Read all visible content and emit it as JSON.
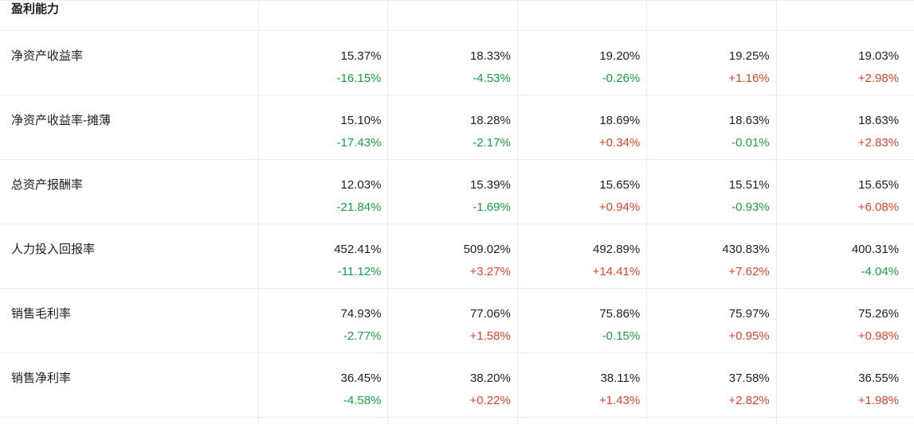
{
  "section": {
    "title": "盈利能力"
  },
  "colors": {
    "positive": "#e0432c",
    "negative": "#18a044",
    "text": "#1f1f1f",
    "border": "#ebebeb"
  },
  "table": {
    "rows": [
      {
        "label": "净资产收益率",
        "cells": [
          {
            "value": "15.37%",
            "change": "-16.15%",
            "trend": "negative"
          },
          {
            "value": "18.33%",
            "change": "-4.53%",
            "trend": "negative"
          },
          {
            "value": "19.20%",
            "change": "-0.26%",
            "trend": "negative"
          },
          {
            "value": "19.25%",
            "change": "+1.16%",
            "trend": "positive"
          },
          {
            "value": "19.03%",
            "change": "+2.98%",
            "trend": "positive"
          }
        ]
      },
      {
        "label": "净资产收益率-摊薄",
        "cells": [
          {
            "value": "15.10%",
            "change": "-17.43%",
            "trend": "negative"
          },
          {
            "value": "18.28%",
            "change": "-2.17%",
            "trend": "negative"
          },
          {
            "value": "18.69%",
            "change": "+0.34%",
            "trend": "positive"
          },
          {
            "value": "18.63%",
            "change": "-0.01%",
            "trend": "negative"
          },
          {
            "value": "18.63%",
            "change": "+2.83%",
            "trend": "positive"
          }
        ]
      },
      {
        "label": "总资产报酬率",
        "cells": [
          {
            "value": "12.03%",
            "change": "-21.84%",
            "trend": "negative"
          },
          {
            "value": "15.39%",
            "change": "-1.69%",
            "trend": "negative"
          },
          {
            "value": "15.65%",
            "change": "+0.94%",
            "trend": "positive"
          },
          {
            "value": "15.51%",
            "change": "-0.93%",
            "trend": "negative"
          },
          {
            "value": "15.65%",
            "change": "+6.08%",
            "trend": "positive"
          }
        ]
      },
      {
        "label": "人力投入回报率",
        "cells": [
          {
            "value": "452.41%",
            "change": "-11.12%",
            "trend": "negative"
          },
          {
            "value": "509.02%",
            "change": "+3.27%",
            "trend": "positive"
          },
          {
            "value": "492.89%",
            "change": "+14.41%",
            "trend": "positive"
          },
          {
            "value": "430.83%",
            "change": "+7.62%",
            "trend": "positive"
          },
          {
            "value": "400.31%",
            "change": "-4.04%",
            "trend": "negative"
          }
        ]
      },
      {
        "label": "销售毛利率",
        "cells": [
          {
            "value": "74.93%",
            "change": "-2.77%",
            "trend": "negative"
          },
          {
            "value": "77.06%",
            "change": "+1.58%",
            "trend": "positive"
          },
          {
            "value": "75.86%",
            "change": "-0.15%",
            "trend": "negative"
          },
          {
            "value": "75.97%",
            "change": "+0.95%",
            "trend": "positive"
          },
          {
            "value": "75.26%",
            "change": "+0.98%",
            "trend": "positive"
          }
        ]
      },
      {
        "label": "销售净利率",
        "cells": [
          {
            "value": "36.45%",
            "change": "-4.58%",
            "trend": "negative"
          },
          {
            "value": "38.20%",
            "change": "+0.22%",
            "trend": "positive"
          },
          {
            "value": "38.11%",
            "change": "+1.43%",
            "trend": "positive"
          },
          {
            "value": "37.58%",
            "change": "+2.82%",
            "trend": "positive"
          },
          {
            "value": "36.55%",
            "change": "+1.98%",
            "trend": "positive"
          }
        ]
      }
    ]
  }
}
